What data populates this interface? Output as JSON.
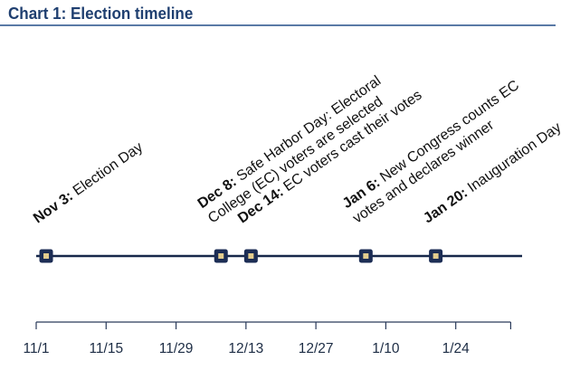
{
  "title": "Chart 1: Election timeline",
  "colors": {
    "title": "#1f3f70",
    "rule": "#5a7aa6",
    "line": "#17284a",
    "marker_border": "#1c2d55",
    "marker_fill": "#e3cd8e",
    "axis": "#2a3a5a"
  },
  "events": [
    {
      "date": "2020-11-03",
      "bold": "Nov 3:",
      "text": [
        "Election Day"
      ]
    },
    {
      "date": "2020-12-08",
      "bold": "Dec 8:",
      "text": [
        "Safe Harbor Day: Electoral",
        "College (EC) voters are selected"
      ]
    },
    {
      "date": "2020-12-14",
      "bold": "Dec 14:",
      "text": [
        "EC voters cast their votes"
      ]
    },
    {
      "date": "2021-01-06",
      "bold": "Jan 6:",
      "text": [
        "New Congress counts EC",
        "votes and declares winner"
      ]
    },
    {
      "date": "2021-01-20",
      "bold": "Jan 20:",
      "text": [
        "Inauguration Day"
      ]
    }
  ],
  "axis": {
    "start": "2020-11-01",
    "end": "2021-02-04",
    "ticks": [
      {
        "date": "2020-11-01",
        "label": "11/1"
      },
      {
        "date": "2020-11-15",
        "label": "11/15"
      },
      {
        "date": "2020-11-29",
        "label": "11/29"
      },
      {
        "date": "2020-12-13",
        "label": "12/13"
      },
      {
        "date": "2020-12-27",
        "label": "12/27"
      },
      {
        "date": "2021-01-10",
        "label": "1/10"
      },
      {
        "date": "2021-01-24",
        "label": "1/24"
      }
    ]
  }
}
